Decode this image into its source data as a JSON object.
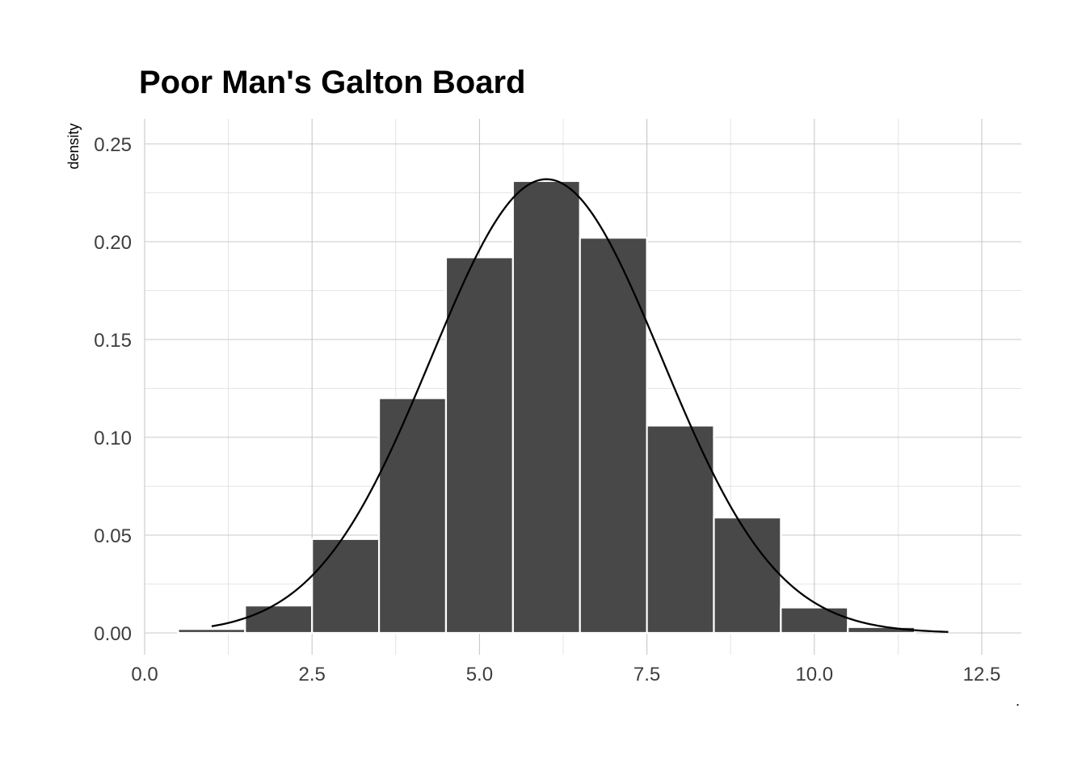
{
  "chart_data": {
    "type": "bar",
    "title": "Poor Man's Galton Board",
    "xlabel": "",
    "ylabel": "density",
    "caption": ".",
    "xlim": [
      0,
      13
    ],
    "ylim": [
      0,
      0.25
    ],
    "x_ticks": [
      0,
      2.5,
      5,
      7.5,
      10,
      12.5
    ],
    "x_tick_labels": [
      "0.0",
      "2.5",
      "5.0",
      "7.5",
      "10.0",
      "12.5"
    ],
    "y_ticks": [
      0,
      0.05,
      0.1,
      0.15,
      0.2,
      0.25
    ],
    "y_tick_labels": [
      "0.00",
      "0.05",
      "0.10",
      "0.15",
      "0.20",
      "0.25"
    ],
    "grid": true,
    "bin_width": 1,
    "categories": [
      1,
      2,
      3,
      4,
      5,
      6,
      7,
      8,
      9,
      10,
      11
    ],
    "values": [
      0.002,
      0.014,
      0.048,
      0.12,
      0.192,
      0.231,
      0.202,
      0.106,
      0.059,
      0.013,
      0.003
    ],
    "density_curve": {
      "type": "normal",
      "mean": 6.0,
      "sd": 1.72,
      "x_range": [
        1,
        12
      ]
    }
  }
}
